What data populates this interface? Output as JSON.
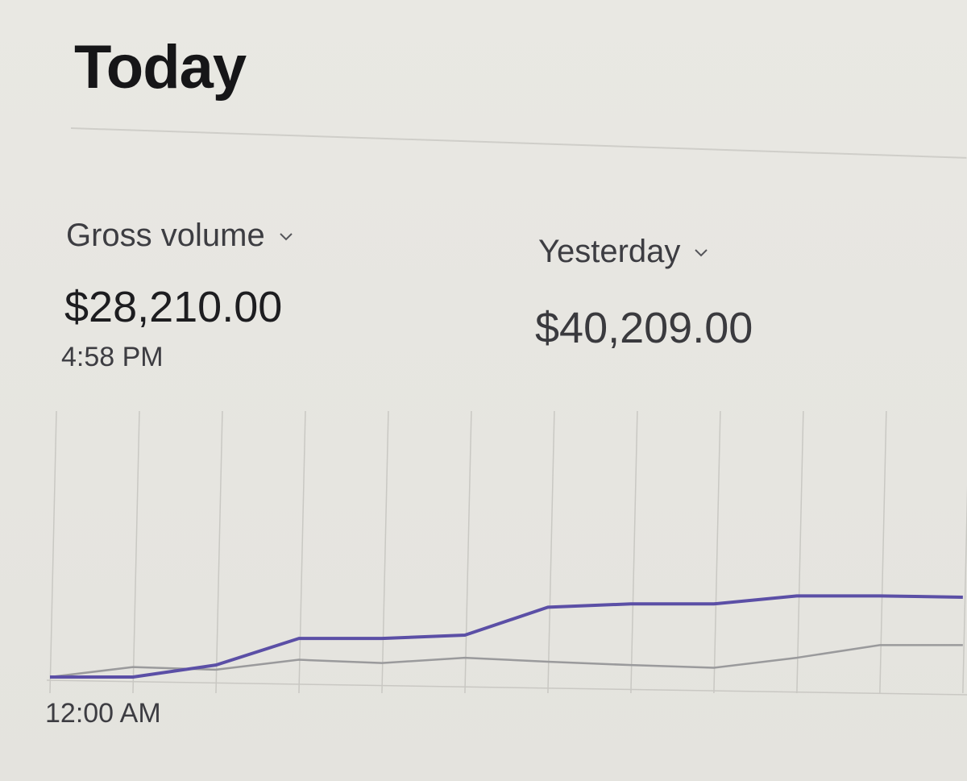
{
  "header": {
    "title": "Today"
  },
  "gross_volume": {
    "label": "Gross volume",
    "value": "$28,210.00",
    "time": "4:58 PM"
  },
  "comparison": {
    "label": "Yesterday",
    "value": "$40,209.00"
  },
  "axis": {
    "start_label": "12:00 AM"
  },
  "colors": {
    "today_line": "#5b4fa6",
    "yesterday_line": "#9a9a9c",
    "gridline": "#c9c8c3"
  },
  "chart_data": {
    "type": "line",
    "x": [
      0,
      1,
      2,
      3,
      4,
      5,
      6,
      7,
      8,
      9,
      10,
      11
    ],
    "series": [
      {
        "values": [
          0,
          0,
          1800,
          5800,
          5800,
          6300,
          10500,
          11000,
          11000,
          12200,
          12200,
          12000
        ]
      },
      {
        "values": [
          0,
          1500,
          1100,
          2600,
          2100,
          2900,
          2300,
          1800,
          1400,
          2900,
          4800,
          4800
        ]
      }
    ],
    "ylim": [
      0,
      40000
    ],
    "grid": "vertical",
    "xlabel": "",
    "ylabel": ""
  }
}
